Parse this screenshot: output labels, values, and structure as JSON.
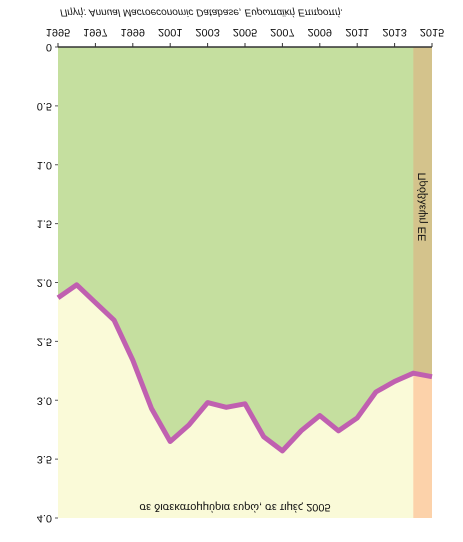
{
  "chart_data": {
    "type": "area-line",
    "subtitle": "σε δισεκατομμύρια ευρώ, σε τιμές 2005",
    "source": "Πηγή: Annual Macroeconomic Database, Ευρωπαϊκή Επιτροπή.",
    "annotation": "Πρόβλεψη ΕΕ",
    "x": [
      1995,
      1996,
      1997,
      1998,
      1999,
      2000,
      2001,
      2002,
      2003,
      2004,
      2005,
      2006,
      2007,
      2008,
      2009,
      2010,
      2011,
      2012,
      2013,
      2014,
      2015
    ],
    "values": [
      2.13,
      2.02,
      2.17,
      2.32,
      2.66,
      3.07,
      3.35,
      3.21,
      3.02,
      3.06,
      3.03,
      3.31,
      3.43,
      3.26,
      3.13,
      3.26,
      3.15,
      2.93,
      2.84,
      2.77,
      2.8
    ],
    "color": "#c060b0",
    "below_color": "#c5df9f",
    "above_color": "#fafad8",
    "forecast_range": [
      2014,
      2015
    ],
    "forecast_below_color": "#d4c38c",
    "forecast_above_color": "#fcd2aa",
    "xlim": [
      1995,
      2015
    ],
    "xticks": [
      1995,
      1997,
      1999,
      2001,
      2003,
      2005,
      2007,
      2009,
      2011,
      2013,
      2015
    ],
    "ylim": [
      0,
      4
    ],
    "yticks": [
      0,
      0.5,
      {
        "value": 1,
        "label": "1.0"
      },
      1.5,
      {
        "value": 2,
        "label": "2.0"
      },
      2.5,
      {
        "value": 3,
        "label": "3.0"
      },
      3.5,
      {
        "value": 4,
        "label": "4.0"
      }
    ],
    "flipped": true
  }
}
